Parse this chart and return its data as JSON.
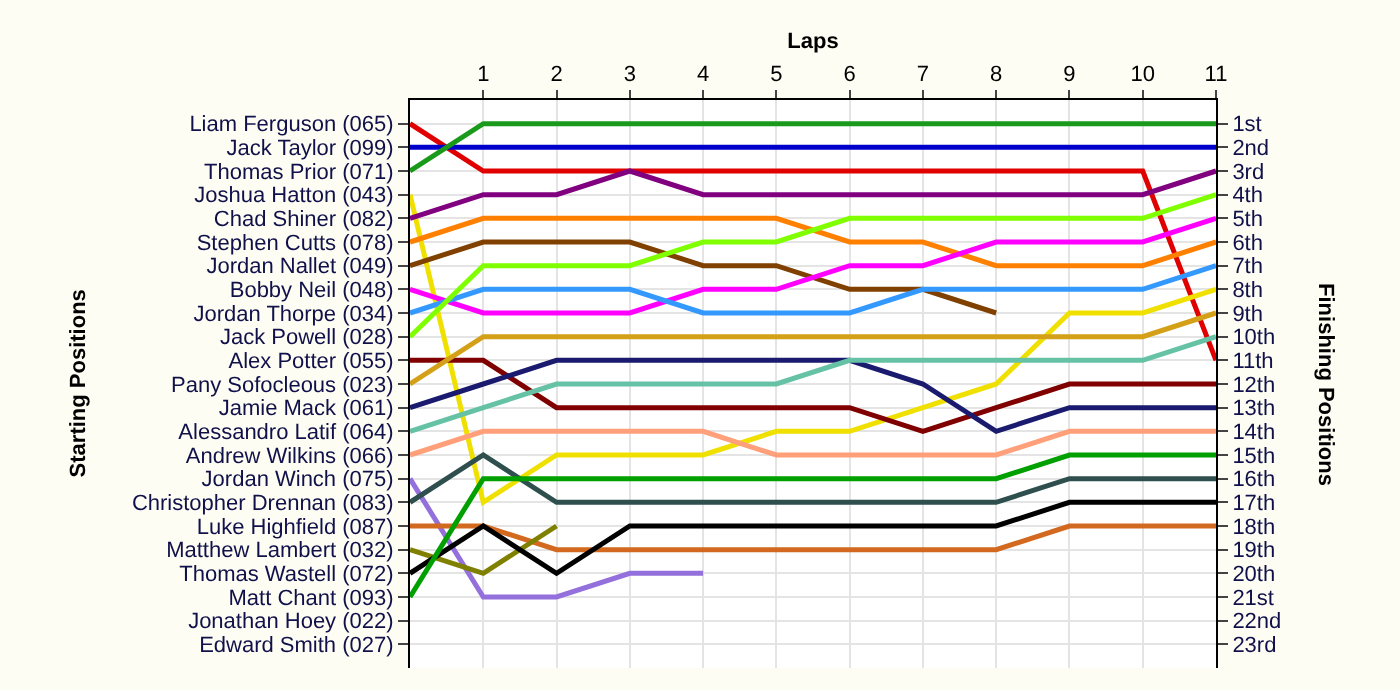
{
  "chart_data": {
    "type": "line",
    "xlabel": "Laps",
    "y2label": "Finishing Positions",
    "annotations": [
      "Starting Positions"
    ],
    "x": [
      0,
      1,
      2,
      3,
      4,
      5,
      6,
      7,
      8,
      9,
      10,
      11
    ],
    "xlim": [
      0,
      11
    ],
    "xticks": [
      1,
      2,
      3,
      4,
      5,
      6,
      7,
      8,
      9,
      10,
      11
    ],
    "y_categories": [
      "Liam Ferguson (065)",
      "Jack Taylor (099)",
      "Thomas Prior (071)",
      "Joshua Hatton (043)",
      "Chad Shiner (082)",
      "Stephen Cutts (078)",
      "Jordan Nallet (049)",
      "Bobby Neil (048)",
      "Jordan Thorpe (034)",
      "Jack Powell (028)",
      "Alex Potter (055)",
      "Pany Sofocleous (023)",
      "Jamie Mack (061)",
      "Alessandro Latif (064)",
      "Andrew Wilkins (066)",
      "Jordan Winch (075)",
      "Christopher Drennan (083)",
      "Luke Highfield (087)",
      "Matthew Lambert (032)",
      "Thomas Wastell (072)",
      "Matt Chant (093)",
      "Jonathan Hoey (022)",
      "Edward Smith (027)"
    ],
    "y2lim": [
      24,
      0
    ],
    "y2ticks": [
      {
        "value": 1,
        "label": "1st"
      },
      {
        "value": 2,
        "label": "2nd"
      },
      {
        "value": 3,
        "label": "3rd"
      },
      {
        "value": 4,
        "label": "4th"
      },
      {
        "value": 5,
        "label": "5th"
      },
      {
        "value": 6,
        "label": "6th"
      },
      {
        "value": 7,
        "label": "7th"
      },
      {
        "value": 8,
        "label": "8th"
      },
      {
        "value": 9,
        "label": "9th"
      },
      {
        "value": 10,
        "label": "10th"
      },
      {
        "value": 11,
        "label": "11th"
      },
      {
        "value": 12,
        "label": "12th"
      },
      {
        "value": 13,
        "label": "13th"
      },
      {
        "value": 14,
        "label": "14th"
      },
      {
        "value": 15,
        "label": "15th"
      },
      {
        "value": 16,
        "label": "16th"
      },
      {
        "value": 17,
        "label": "17th"
      },
      {
        "value": 18,
        "label": "18th"
      },
      {
        "value": 19,
        "label": "19th"
      },
      {
        "value": 20,
        "label": "20th"
      },
      {
        "value": 21,
        "label": "21st"
      },
      {
        "value": 22,
        "label": "22nd"
      },
      {
        "value": 23,
        "label": "23rd"
      }
    ],
    "grid": true,
    "marker": "none",
    "line_style": "solid",
    "series": [
      {
        "axis": "y2",
        "color": "#e00000",
        "values": [
          1,
          3,
          3,
          3,
          3,
          3,
          3,
          3,
          3,
          3,
          3,
          11
        ]
      },
      {
        "axis": "y2",
        "color": "#0000cc",
        "values": [
          2,
          2,
          2,
          2,
          2,
          2,
          2,
          2,
          2,
          2,
          2,
          2
        ]
      },
      {
        "axis": "y2",
        "color": "#1a9a1a",
        "values": [
          3,
          1,
          1,
          1,
          1,
          1,
          1,
          1,
          1,
          1,
          1,
          1
        ]
      },
      {
        "axis": "y2",
        "color": "#f0e000",
        "values": [
          4,
          17,
          15,
          15,
          15,
          14,
          14,
          13,
          12,
          9,
          9,
          8
        ]
      },
      {
        "axis": "y2",
        "color": "#800080",
        "values": [
          5,
          4,
          4,
          3,
          4,
          4,
          4,
          4,
          4,
          4,
          4,
          3
        ]
      },
      {
        "axis": "y2",
        "color": "#ff8000",
        "values": [
          6,
          5,
          5,
          5,
          5,
          5,
          6,
          6,
          7,
          7,
          7,
          6
        ]
      },
      {
        "axis": "y2",
        "color": "#804000",
        "values": [
          7,
          6,
          6,
          6,
          7,
          7,
          8,
          8,
          9,
          null,
          null,
          null
        ]
      },
      {
        "axis": "y2",
        "color": "#ff00ff",
        "values": [
          8,
          9,
          9,
          9,
          8,
          8,
          7,
          7,
          6,
          6,
          6,
          5
        ]
      },
      {
        "axis": "y2",
        "color": "#3399ff",
        "values": [
          9,
          8,
          8,
          8,
          9,
          9,
          9,
          8,
          8,
          8,
          8,
          7
        ]
      },
      {
        "axis": "y2",
        "color": "#80ff00",
        "values": [
          10,
          7,
          7,
          7,
          6,
          6,
          5,
          5,
          5,
          5,
          5,
          4
        ]
      },
      {
        "axis": "y2",
        "color": "#800000",
        "values": [
          11,
          11,
          13,
          13,
          13,
          13,
          13,
          14,
          13,
          12,
          12,
          12
        ]
      },
      {
        "axis": "y2",
        "color": "#d4a017",
        "values": [
          12,
          10,
          10,
          10,
          10,
          10,
          10,
          10,
          10,
          10,
          10,
          9
        ]
      },
      {
        "axis": "y2",
        "color": "#1a1a6e",
        "values": [
          13,
          12,
          11,
          11,
          11,
          11,
          11,
          12,
          14,
          13,
          13,
          13
        ]
      },
      {
        "axis": "y2",
        "color": "#66c2a5",
        "values": [
          14,
          13,
          12,
          12,
          12,
          12,
          11,
          11,
          11,
          11,
          11,
          10
        ]
      },
      {
        "axis": "y2",
        "color": "#ffa07a",
        "values": [
          15,
          14,
          14,
          14,
          14,
          15,
          15,
          15,
          15,
          14,
          14,
          14
        ]
      },
      {
        "axis": "y2",
        "color": "#9370db",
        "values": [
          16,
          21,
          21,
          20,
          20,
          null,
          null,
          null,
          null,
          null,
          null,
          null
        ]
      },
      {
        "axis": "y2",
        "color": "#2f4f4f",
        "values": [
          17,
          15,
          17,
          17,
          17,
          17,
          17,
          17,
          17,
          16,
          16,
          16
        ]
      },
      {
        "axis": "y2",
        "color": "#d2691e",
        "values": [
          18,
          18,
          19,
          19,
          19,
          19,
          19,
          19,
          19,
          18,
          18,
          18
        ]
      },
      {
        "axis": "y2",
        "color": "#808000",
        "values": [
          19,
          20,
          18,
          null,
          null,
          null,
          null,
          null,
          null,
          null,
          null,
          null
        ]
      },
      {
        "axis": "y2",
        "color": "#000000",
        "values": [
          20,
          18,
          20,
          18,
          18,
          18,
          18,
          18,
          18,
          17,
          17,
          17
        ]
      },
      {
        "axis": "y2",
        "color": "#00a000",
        "values": [
          21,
          16,
          16,
          16,
          16,
          16,
          16,
          16,
          16,
          15,
          15,
          15
        ]
      }
    ]
  }
}
